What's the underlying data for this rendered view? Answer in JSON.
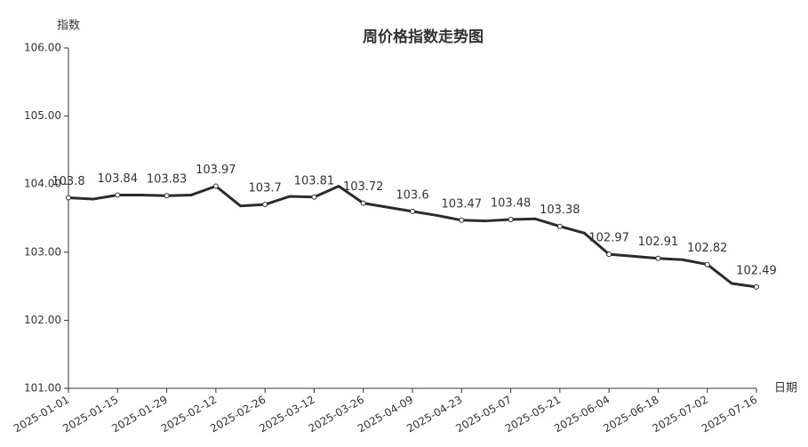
{
  "chart_data": {
    "type": "line",
    "title": "周价格指数走势图",
    "y_label": "指数",
    "x_label": "日期",
    "categories": [
      "2025-01-01",
      null,
      "2025-01-15",
      null,
      "2025-01-29",
      null,
      "2025-02-12",
      null,
      "2025-02-26",
      null,
      "2025-03-12",
      null,
      "2025-03-26",
      null,
      "2025-04-09",
      null,
      "2025-04-23",
      null,
      "2025-05-07",
      null,
      "2025-05-21",
      null,
      "2025-06-04",
      null,
      "2025-06-18",
      null,
      "2025-07-02",
      null,
      "2025-07-16"
    ],
    "values": [
      103.8,
      103.78,
      103.84,
      103.84,
      103.83,
      103.84,
      103.97,
      103.68,
      103.7,
      103.82,
      103.81,
      103.97,
      103.72,
      103.66,
      103.6,
      103.54,
      103.47,
      103.46,
      103.48,
      103.49,
      103.38,
      103.28,
      102.97,
      102.94,
      102.91,
      102.89,
      102.82,
      102.54,
      102.49
    ],
    "color": "#2b2b2b",
    "ylim": [
      101,
      106
    ],
    "yticks": [
      {
        "value": 101,
        "label": "101.00"
      },
      {
        "value": 102,
        "label": "102.00"
      },
      {
        "value": 103,
        "label": "103.00"
      },
      {
        "value": 104,
        "label": "104.00"
      },
      {
        "value": 105,
        "label": "105.00"
      },
      {
        "value": 106,
        "label": "106.00"
      }
    ],
    "grid": false
  }
}
